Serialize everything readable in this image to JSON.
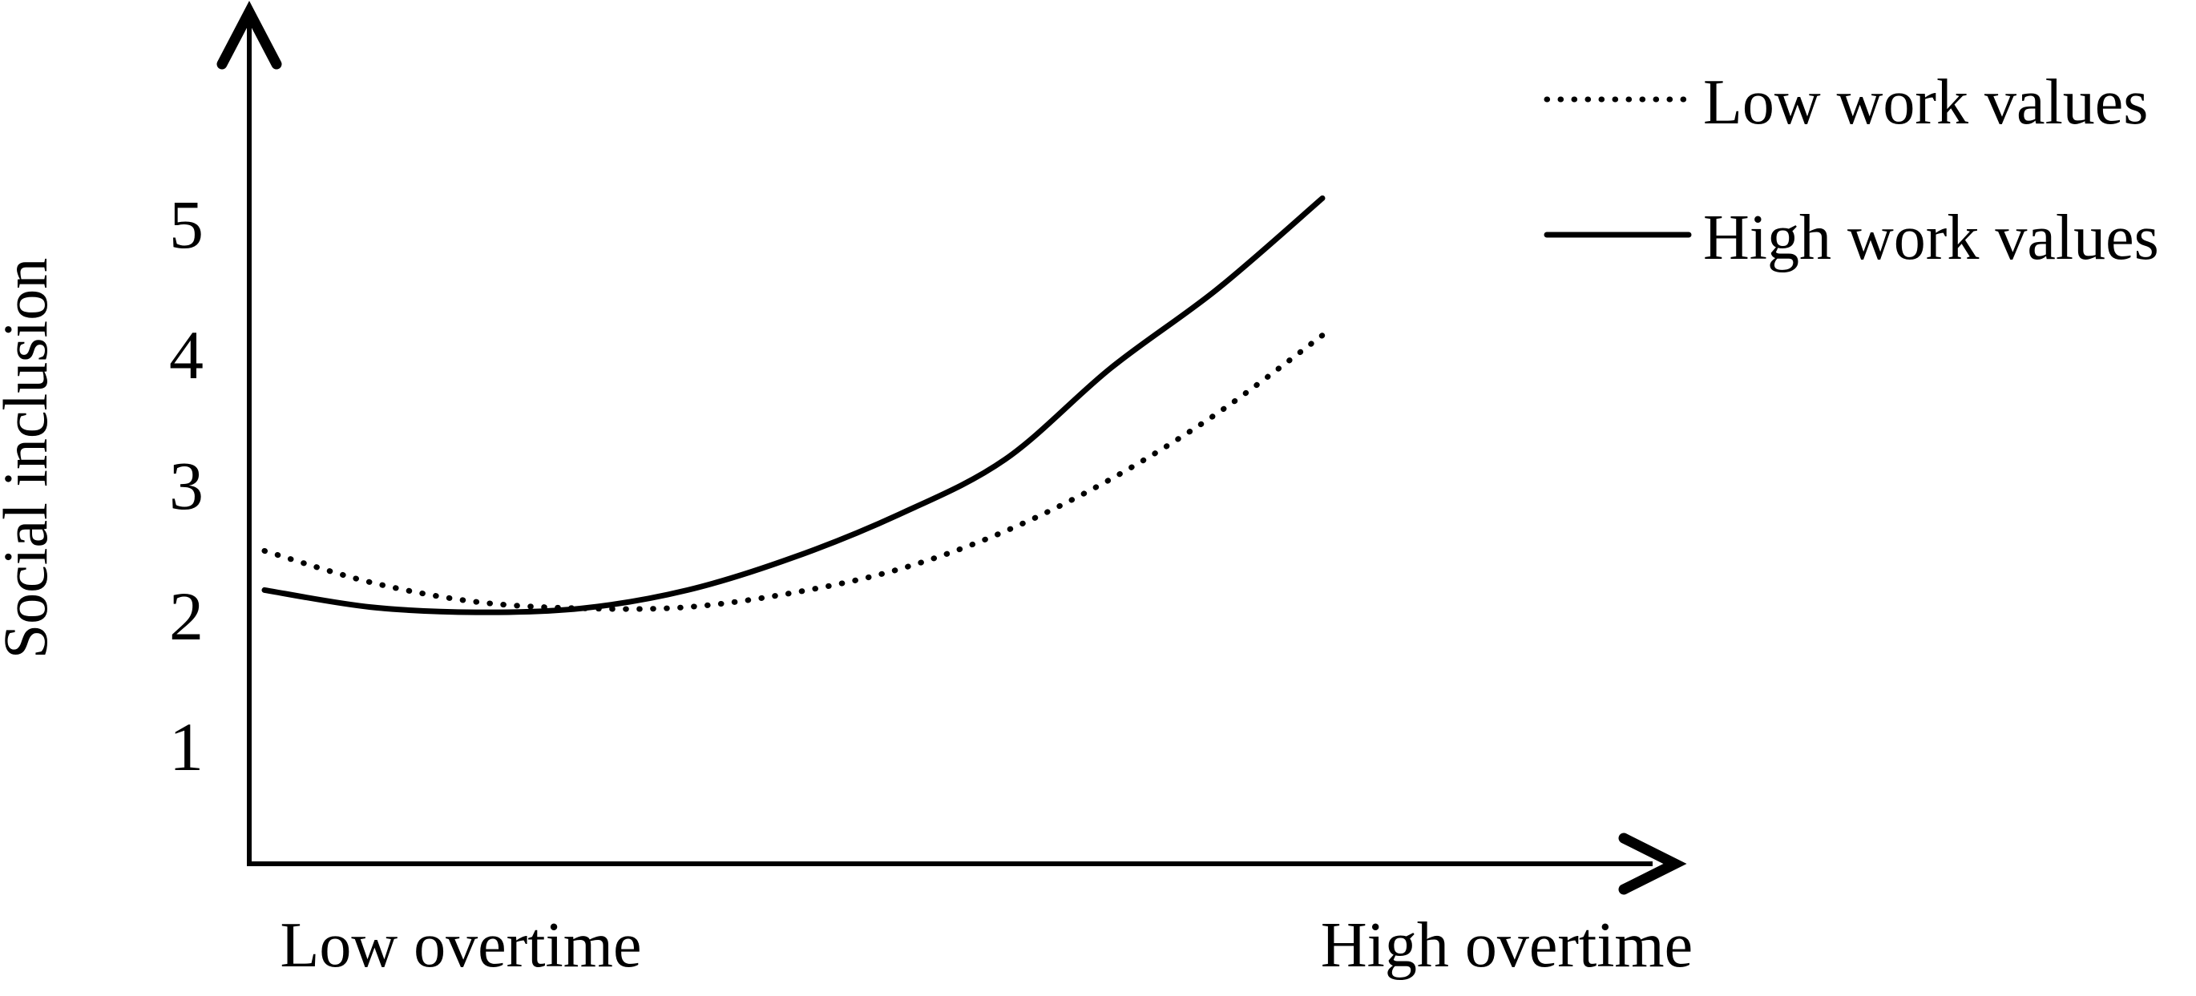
{
  "chart_data": {
    "type": "line",
    "title": "",
    "ylabel": "Social inclusion",
    "xlabel": "",
    "y_ticks": [
      1,
      2,
      3,
      4,
      5
    ],
    "y_axis_drawn_range": [
      0.1,
      6.6
    ],
    "x_axis_endpoint_labels": [
      "Low overtime",
      "High overtime"
    ],
    "x_range_fraction": [
      0,
      1
    ],
    "grid": false,
    "legend_position": "top-right",
    "series": [
      {
        "name": "Low work values",
        "line_style": "dotted",
        "x_fraction": [
          0,
          0.1,
          0.2,
          0.3,
          0.4,
          0.5,
          0.6,
          0.7,
          0.8,
          0.9,
          1.0
        ],
        "values": [
          2.5,
          2.26,
          2.11,
          2.06,
          2.07,
          2.18,
          2.36,
          2.65,
          3.05,
          3.55,
          4.15
        ]
      },
      {
        "name": "High work values",
        "line_style": "solid",
        "x_fraction": [
          0,
          0.1,
          0.2,
          0.3,
          0.4,
          0.5,
          0.6,
          0.7,
          0.8,
          0.9,
          1.0
        ],
        "values": [
          2.2,
          2.07,
          2.03,
          2.06,
          2.2,
          2.45,
          2.78,
          3.2,
          3.9,
          4.5,
          5.2
        ]
      }
    ]
  },
  "colors": {
    "ink": "#000000",
    "background": "#ffffff"
  }
}
